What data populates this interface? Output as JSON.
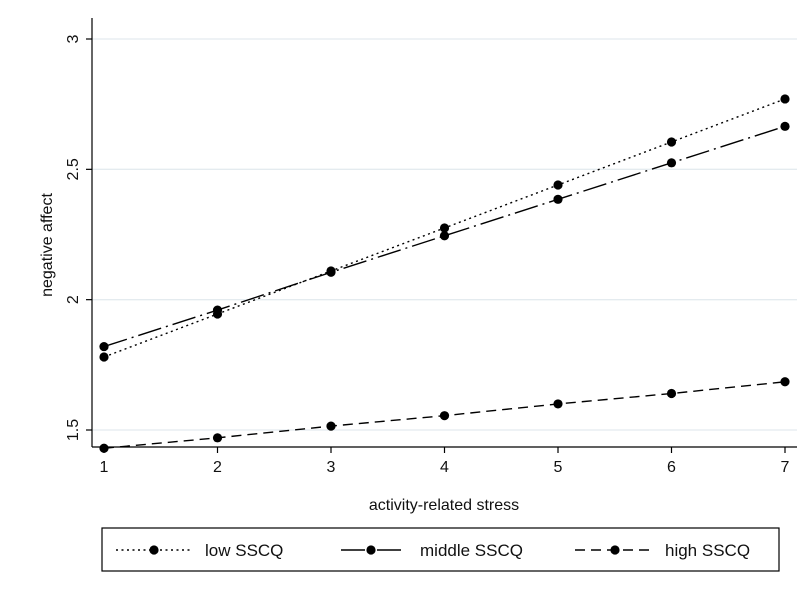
{
  "chart_data": {
    "type": "line",
    "xlabel": "activity-related stress",
    "ylabel": "negative affect",
    "x": [
      1,
      2,
      3,
      4,
      5,
      6,
      7
    ],
    "xticks": [
      "1",
      "2",
      "3",
      "4",
      "5",
      "6",
      "7"
    ],
    "yticks": [
      "1.5",
      "2",
      "2.5",
      "3"
    ],
    "ylim": [
      1.5,
      3
    ],
    "grid": true,
    "legend_position": "bottom",
    "series": [
      {
        "name": "low SSCQ",
        "dash": "dotted",
        "values": [
          1.78,
          1.945,
          2.11,
          2.275,
          2.44,
          2.605,
          2.77
        ]
      },
      {
        "name": "middle SSCQ",
        "dash": "longdash-dot",
        "values": [
          1.82,
          1.96,
          2.105,
          2.245,
          2.385,
          2.525,
          2.665
        ]
      },
      {
        "name": "high SSCQ",
        "dash": "dashed",
        "values": [
          1.43,
          1.47,
          1.515,
          1.555,
          1.6,
          1.64,
          1.685
        ]
      }
    ],
    "colors": {
      "line": "#000000",
      "grid": "#e4ebef",
      "frame": "#000000"
    }
  }
}
